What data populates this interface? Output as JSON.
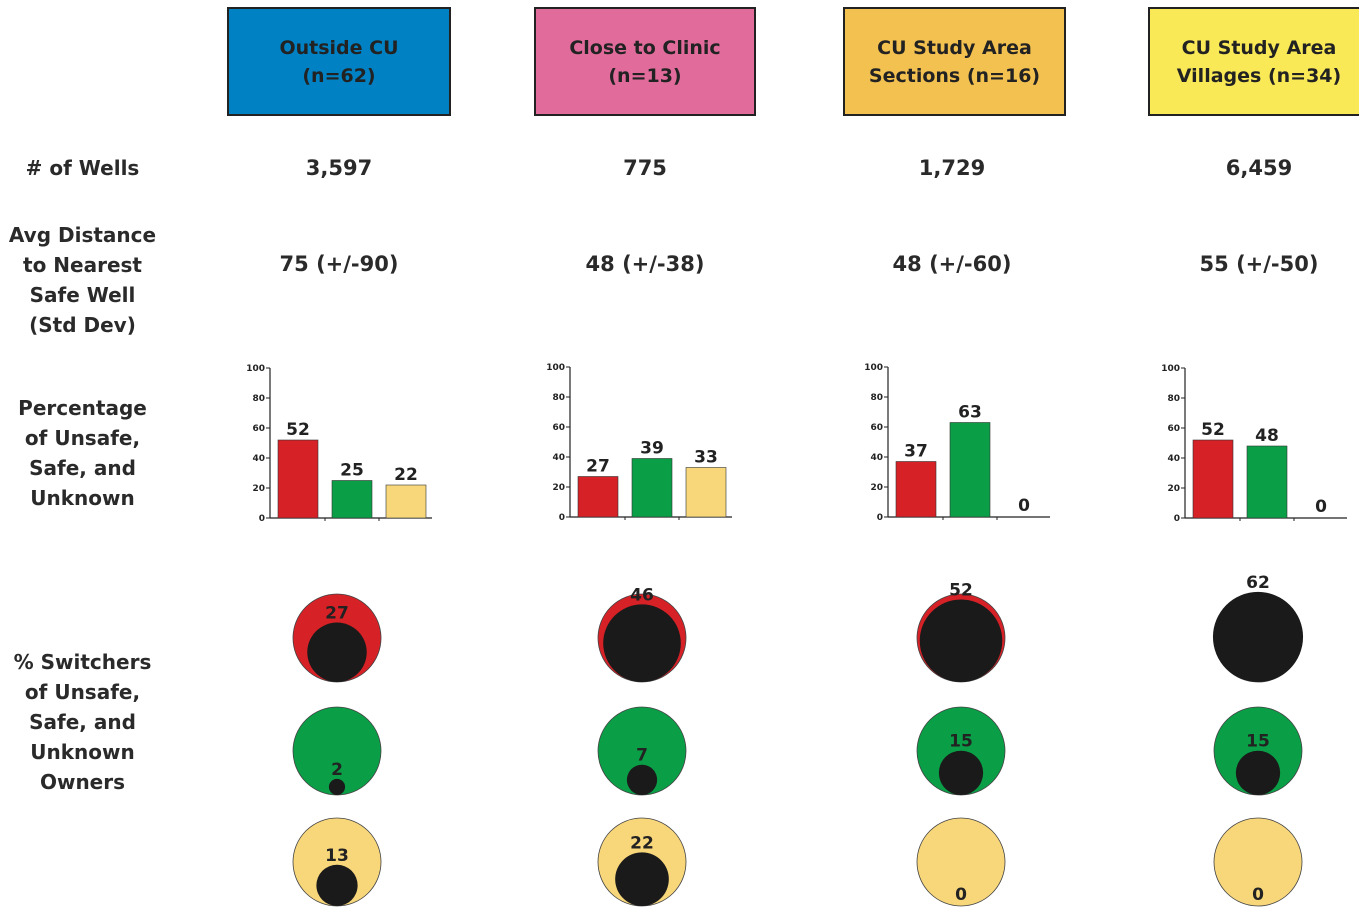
{
  "colors": {
    "outside": "#0081c3",
    "clinic": "#e16c9c",
    "sections": "#f3c150",
    "villages": "#f9e956",
    "unsafe": "#d62127",
    "safe": "#0a9e47",
    "unknown": "#f8d77b",
    "switcher": "#1a1a1a"
  },
  "row_labels": {
    "wells": "# of Wells",
    "distance": [
      "Avg Distance",
      "to Nearest",
      "Safe Well",
      "(Std Dev)"
    ],
    "percentage": [
      "Percentage",
      "of Unsafe,",
      "Safe, and",
      "Unknown"
    ],
    "switchers": [
      "% Switchers",
      "of Unsafe,",
      "Safe, and",
      "Unknown",
      "Owners"
    ]
  },
  "groups": [
    {
      "title_lines": [
        "Outside CU",
        "(n=62)"
      ],
      "wells": "3,597",
      "distance": "75 (+/-90)"
    },
    {
      "title_lines": [
        "Close to Clinic",
        "(n=13)"
      ],
      "wells": "775",
      "distance": "48 (+/-38)"
    },
    {
      "title_lines": [
        "CU Study Area",
        "Sections (n=16)"
      ],
      "wells": "1,729",
      "distance": "48 (+/-60)"
    },
    {
      "title_lines": [
        "CU Study Area",
        "Villages (n=34)"
      ],
      "wells": "6,459",
      "distance": "55 (+/-50)"
    }
  ],
  "chart_data": [
    {
      "type": "bar",
      "categories": [
        "Unsafe",
        "Safe",
        "Unknown"
      ],
      "values": [
        52,
        25,
        22
      ],
      "ylim": [
        0,
        100
      ],
      "yticks": [
        "0",
        "20",
        "40",
        "60",
        "80",
        "100"
      ]
    },
    {
      "type": "bar",
      "categories": [
        "Unsafe",
        "Safe",
        "Unknown"
      ],
      "values": [
        27,
        39,
        33
      ],
      "ylim": [
        0,
        100
      ],
      "yticks": [
        "0",
        "20",
        "40",
        "60",
        "80",
        "100"
      ]
    },
    {
      "type": "bar",
      "categories": [
        "Unsafe",
        "Safe",
        "Unknown"
      ],
      "values": [
        37,
        63,
        0
      ],
      "ylim": [
        0,
        100
      ],
      "yticks": [
        "0",
        "20",
        "40",
        "60",
        "80",
        "100"
      ]
    },
    {
      "type": "bar",
      "categories": [
        "Unsafe",
        "Safe",
        "Unknown"
      ],
      "values": [
        52,
        48,
        0
      ],
      "ylim": [
        0,
        100
      ],
      "yticks": [
        "0",
        "20",
        "40",
        "60",
        "80",
        "100"
      ]
    },
    {
      "type": "proportional-circles",
      "label": "% Switchers",
      "categories": [
        "Unsafe",
        "Safe",
        "Unknown"
      ],
      "series": [
        {
          "group": "Outside CU",
          "values": [
            27,
            2,
            13
          ]
        },
        {
          "group": "Close to Clinic",
          "values": [
            46,
            7,
            22
          ]
        },
        {
          "group": "CU Study Area Sections",
          "values": [
            52,
            15,
            0
          ]
        },
        {
          "group": "CU Study Area Villages",
          "values": [
            62,
            15,
            0
          ]
        }
      ]
    }
  ]
}
